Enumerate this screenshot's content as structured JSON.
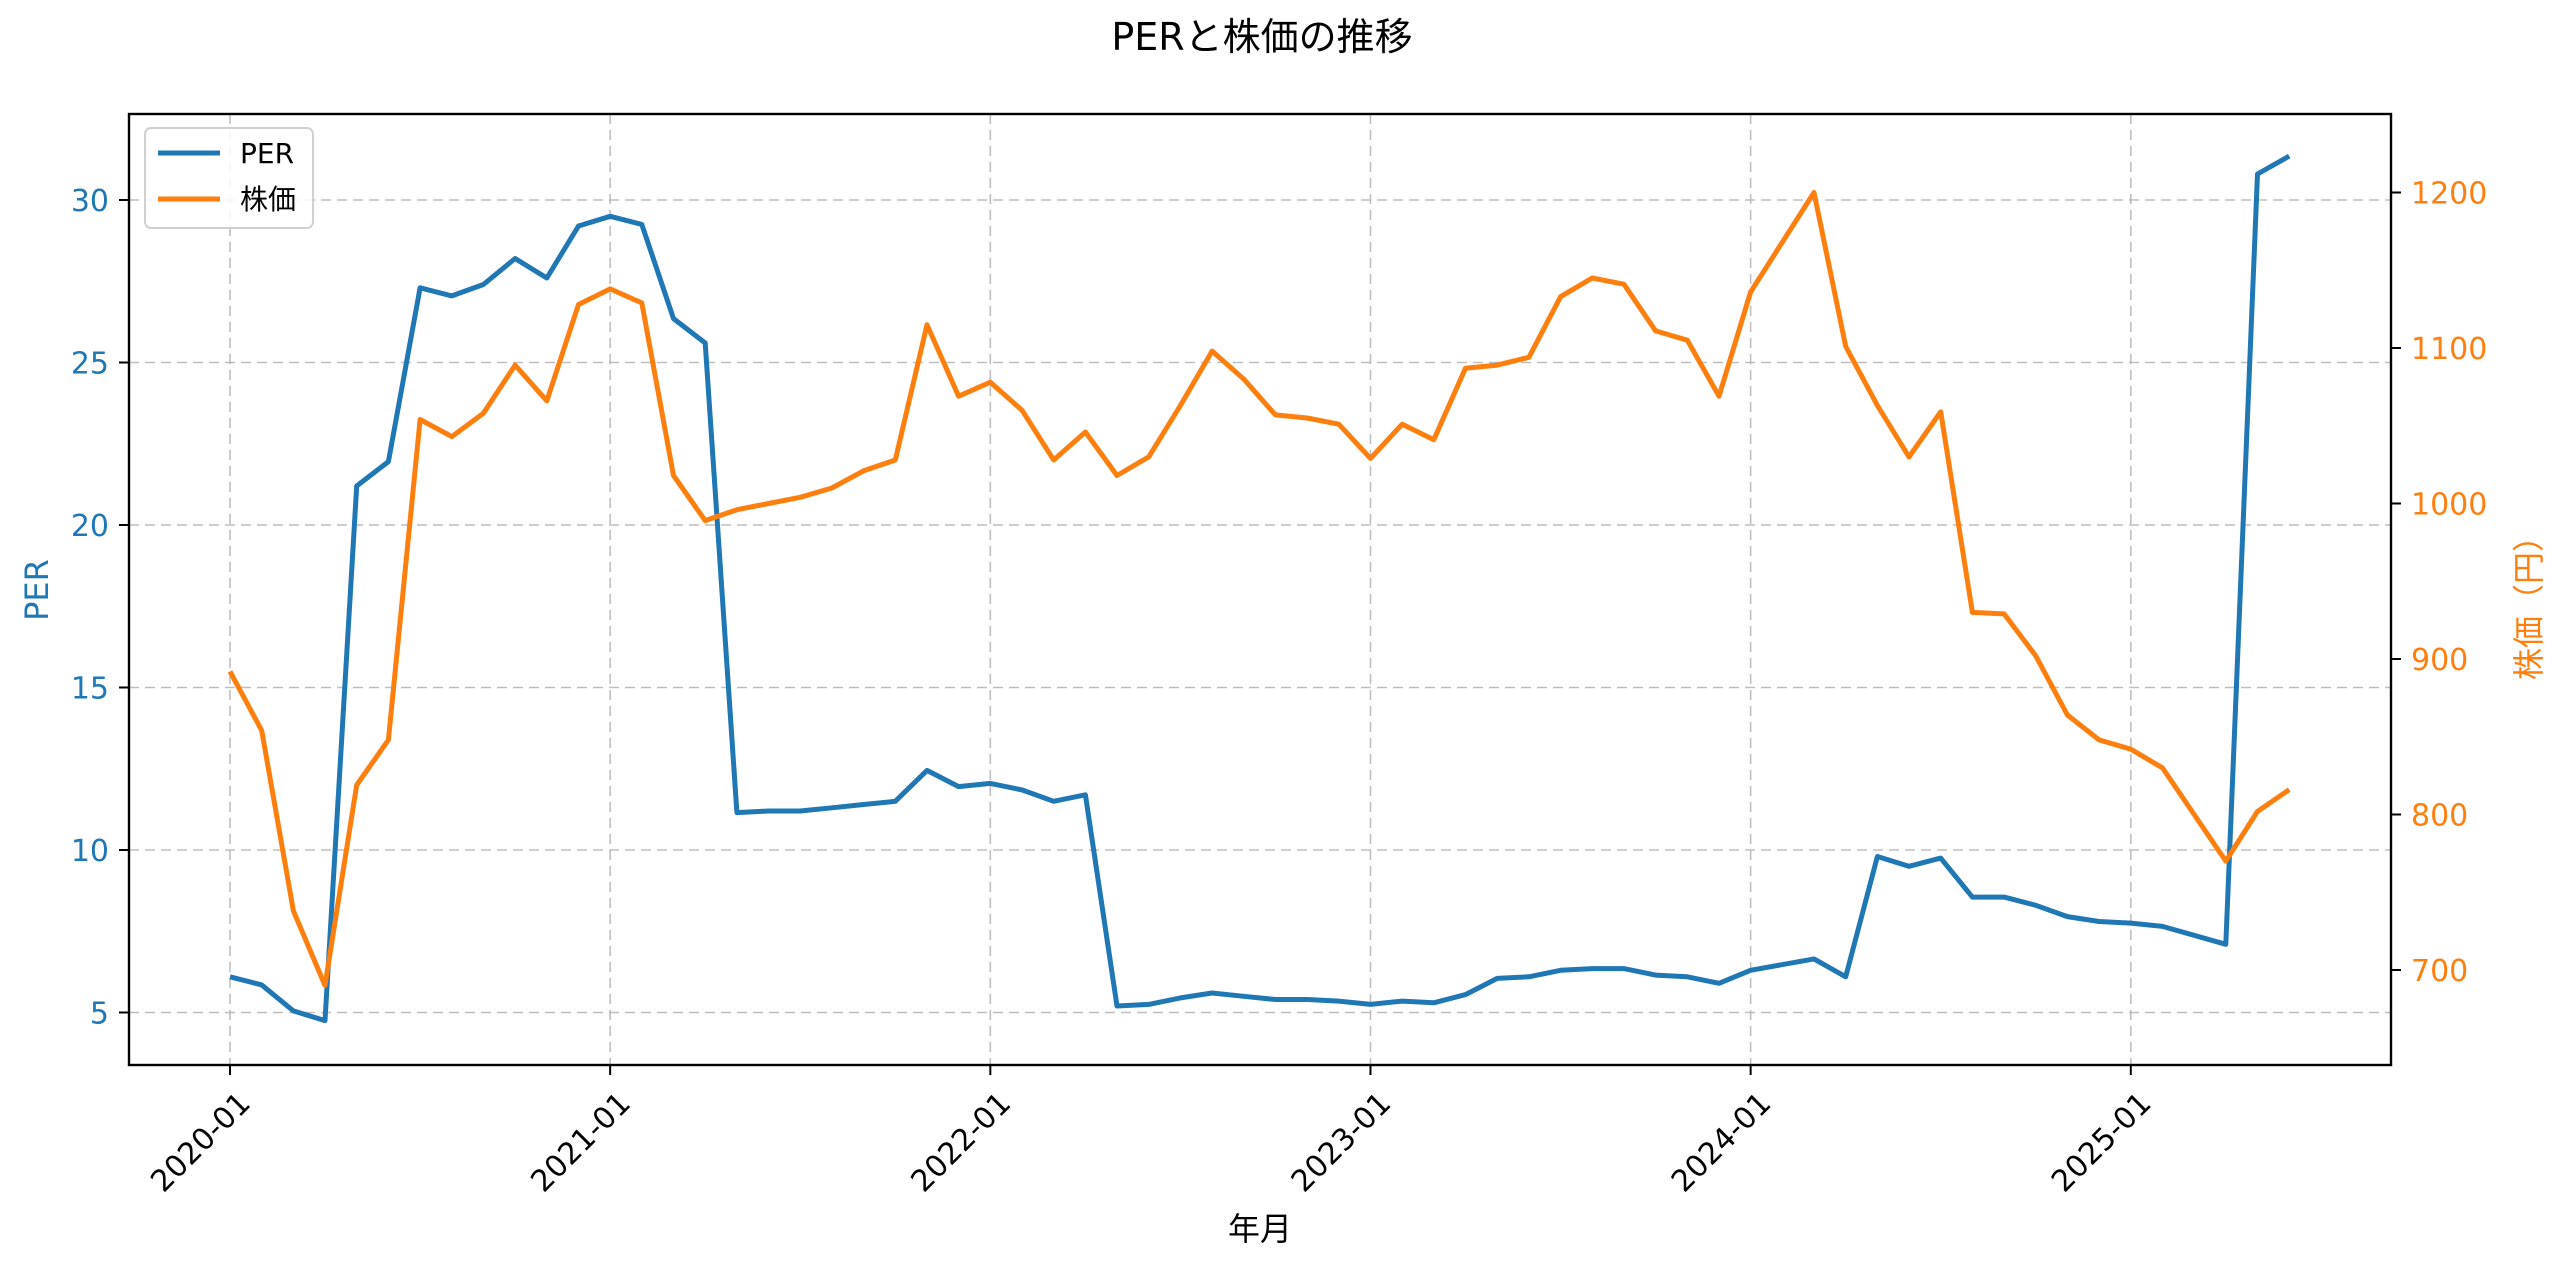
{
  "chart_data": {
    "type": "line",
    "title": "PERと株価の推移",
    "xlabel": "年月",
    "ylabel_left": "PER",
    "ylabel_right": "株価（円）",
    "x_tick_labels": [
      "2020-01",
      "2021-01",
      "2022-01",
      "2023-01",
      "2024-01",
      "2025-01"
    ],
    "y_left_ticks": [
      5,
      10,
      15,
      20,
      25,
      30
    ],
    "y_right_ticks": [
      700,
      800,
      900,
      1000,
      1100,
      1200
    ],
    "y_left_lim": [
      3.4,
      32.7
    ],
    "y_right_lim": [
      638,
      1250
    ],
    "grid": true,
    "legend_position": "upper left",
    "colors": {
      "PER": "#1f77b4",
      "株価": "#ff7f0e"
    },
    "x": [
      "2020-01",
      "2020-02",
      "2020-03",
      "2020-04",
      "2020-05",
      "2020-06",
      "2020-07",
      "2020-08",
      "2020-09",
      "2020-10",
      "2020-11",
      "2020-12",
      "2021-01",
      "2021-02",
      "2021-03",
      "2021-04",
      "2021-05",
      "2021-06",
      "2021-07",
      "2021-08",
      "2021-09",
      "2021-10",
      "2021-11",
      "2021-12",
      "2022-01",
      "2022-02",
      "2022-03",
      "2022-04",
      "2022-05",
      "2022-06",
      "2022-07",
      "2022-08",
      "2022-09",
      "2022-10",
      "2022-11",
      "2022-12",
      "2023-01",
      "2023-02",
      "2023-03",
      "2023-04",
      "2023-05",
      "2023-06",
      "2023-07",
      "2023-08",
      "2023-09",
      "2023-10",
      "2023-11",
      "2023-12",
      "2024-01",
      "2024-03",
      "2024-04",
      "2024-05",
      "2024-06",
      "2024-07",
      "2024-08",
      "2024-09",
      "2024-10",
      "2024-11",
      "2024-12",
      "2025-01",
      "2025-02",
      "2025-04",
      "2025-05",
      "2025-06"
    ],
    "series": [
      {
        "name": "PER",
        "axis": "left",
        "values": [
          6.1,
          5.85,
          5.05,
          4.75,
          21.2,
          21.95,
          27.3,
          27.05,
          27.4,
          28.2,
          27.6,
          29.2,
          29.5,
          29.25,
          26.35,
          25.6,
          11.15,
          11.2,
          11.2,
          11.3,
          11.4,
          11.5,
          12.45,
          11.95,
          12.05,
          11.85,
          11.5,
          11.7,
          5.2,
          5.25,
          5.45,
          5.6,
          5.5,
          5.4,
          5.4,
          5.35,
          5.25,
          5.35,
          5.3,
          5.55,
          6.05,
          6.1,
          6.3,
          6.35,
          6.35,
          6.15,
          6.1,
          5.9,
          6.3,
          6.65,
          6.1,
          9.8,
          9.5,
          9.75,
          8.55,
          8.55,
          8.3,
          7.95,
          7.8,
          7.75,
          7.65,
          7.1,
          30.8,
          31.35
        ]
      },
      {
        "name": "株価",
        "axis": "right",
        "values": [
          892,
          854,
          738,
          690,
          819,
          848,
          1054,
          1043,
          1058,
          1089,
          1066,
          1128,
          1138,
          1129,
          1018,
          989,
          996,
          1000,
          1004,
          1010,
          1021,
          1028,
          1115,
          1069,
          1078,
          1060,
          1028,
          1046,
          1018,
          1030,
          1063,
          1098,
          1080,
          1057,
          1055,
          1051,
          1029,
          1051,
          1041,
          1087,
          1089,
          1094,
          1133,
          1145,
          1141,
          1111,
          1105,
          1069,
          1136,
          1200,
          1101,
          1063,
          1030,
          1059,
          930,
          929,
          902,
          864,
          848,
          842,
          830,
          770,
          802,
          816
        ]
      }
    ]
  },
  "legend": {
    "items": [
      {
        "label": "PER"
      },
      {
        "label": "株価"
      }
    ]
  }
}
